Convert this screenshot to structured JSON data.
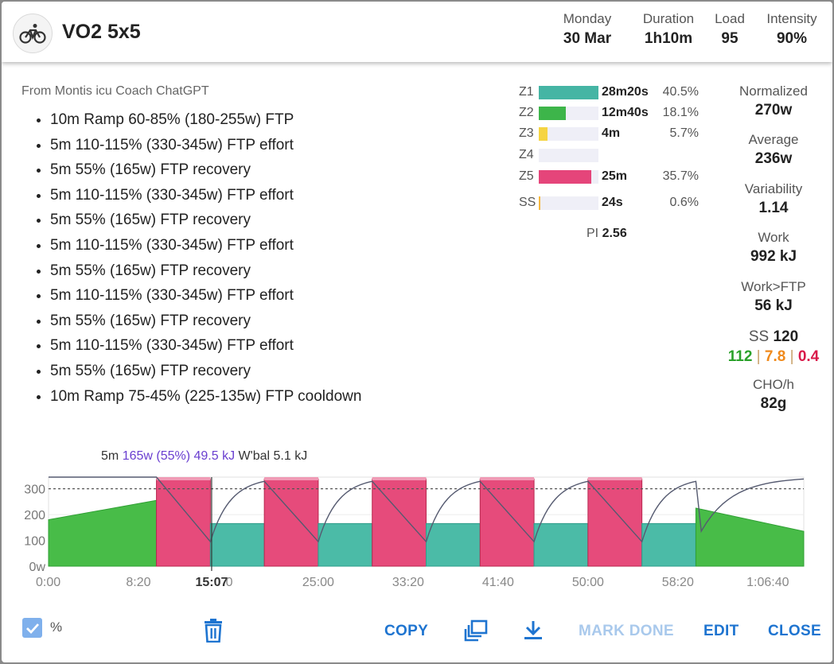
{
  "workout": {
    "title": "VO2 5x5",
    "icon": "bicycle-icon",
    "stats": [
      {
        "label": "Monday",
        "value": "30 Mar"
      },
      {
        "label": "Duration",
        "value": "1h10m"
      },
      {
        "label": "Load",
        "value": "95"
      },
      {
        "label": "Intensity",
        "value": "90%"
      }
    ]
  },
  "description": {
    "source": "From Montis icu Coach ChatGPT",
    "steps": [
      "10m Ramp 60-85% (180-255w) FTP",
      "5m 110-115% (330-345w) FTP effort",
      "5m 55% (165w) FTP recovery",
      "5m 110-115% (330-345w) FTP effort",
      "5m 55% (165w) FTP recovery",
      "5m 110-115% (330-345w) FTP effort",
      "5m 55% (165w) FTP recovery",
      "5m 110-115% (330-345w) FTP effort",
      "5m 55% (165w) FTP recovery",
      "5m 110-115% (330-345w) FTP effort",
      "5m 55% (165w) FTP recovery",
      "10m Ramp 75-45% (225-135w) FTP cooldown"
    ]
  },
  "zones": [
    {
      "name": "Z1",
      "time": "28m20s",
      "pct": "40.5%",
      "fraction": 0.405,
      "color": "#45b5a4"
    },
    {
      "name": "Z2",
      "time": "12m40s",
      "pct": "18.1%",
      "fraction": 0.181,
      "color": "#3db54a"
    },
    {
      "name": "Z3",
      "time": "4m",
      "pct": "5.7%",
      "fraction": 0.057,
      "color": "#f5d442"
    },
    {
      "name": "Z4",
      "time": "",
      "pct": "",
      "fraction": 0,
      "color": "#f29a38"
    },
    {
      "name": "Z5",
      "time": "25m",
      "pct": "35.7%",
      "fraction": 0.357,
      "color": "#e5457a"
    },
    {
      "name": "SS",
      "time": "24s",
      "pct": "0.6%",
      "fraction": 0.006,
      "color": "#f5b942"
    }
  ],
  "pi": {
    "label": "PI",
    "value": "2.56"
  },
  "summary": [
    {
      "label": "Normalized",
      "value": "270w"
    },
    {
      "label": "Average",
      "value": "236w"
    },
    {
      "label": "Variability",
      "value": "1.14"
    },
    {
      "label": "Work",
      "value": "992 kJ"
    },
    {
      "label": "Work>FTP",
      "value": "56 kJ"
    }
  ],
  "ss": {
    "label": "SS",
    "value": "120",
    "a": "112",
    "b": "7.8",
    "c": "0.4",
    "colors": [
      "#2aa12a",
      "#f08a1c",
      "#d91a4a"
    ]
  },
  "cho": {
    "label": "CHO/h",
    "value": "82g"
  },
  "chart_info": {
    "duration": "5m",
    "power": "165w (55%) 49.5 kJ",
    "wbal": "W'bal 5.1 kJ"
  },
  "chart_data": {
    "type": "area",
    "x_unit": "seconds",
    "xlim": [
      0,
      4200
    ],
    "ylim": [
      0,
      345
    ],
    "ftp_line": 300,
    "y_ticks": [
      "0w",
      "100",
      "200",
      "300"
    ],
    "x_ticks": [
      "0:00",
      "8:20",
      "15:07",
      "0",
      "25:00",
      "33:20",
      "41:40",
      "50:00",
      "58:20",
      "1:06:40"
    ],
    "segments": [
      {
        "start": 0,
        "end": 600,
        "from": 180,
        "to": 255,
        "zone": "Z2"
      },
      {
        "start": 600,
        "end": 900,
        "from": 338,
        "to": 338,
        "zone": "Z5"
      },
      {
        "start": 900,
        "end": 1200,
        "from": 165,
        "to": 165,
        "zone": "Z1"
      },
      {
        "start": 1200,
        "end": 1500,
        "from": 338,
        "to": 338,
        "zone": "Z5"
      },
      {
        "start": 1500,
        "end": 1800,
        "from": 165,
        "to": 165,
        "zone": "Z1"
      },
      {
        "start": 1800,
        "end": 2100,
        "from": 338,
        "to": 338,
        "zone": "Z5"
      },
      {
        "start": 2100,
        "end": 2400,
        "from": 165,
        "to": 165,
        "zone": "Z1"
      },
      {
        "start": 2400,
        "end": 2700,
        "from": 338,
        "to": 338,
        "zone": "Z5"
      },
      {
        "start": 2700,
        "end": 3000,
        "from": 165,
        "to": 165,
        "zone": "Z1"
      },
      {
        "start": 3000,
        "end": 3300,
        "from": 338,
        "to": 338,
        "zone": "Z5"
      },
      {
        "start": 3300,
        "end": 3600,
        "from": 165,
        "to": 165,
        "zone": "Z1"
      },
      {
        "start": 3600,
        "end": 4200,
        "from": 225,
        "to": 135,
        "zone": "Z2"
      }
    ],
    "cursor": 907,
    "wbal_min": 95
  },
  "footer": {
    "percent_label": "%",
    "percent_checked": true,
    "copy": "COPY",
    "mark_done": "MARK DONE",
    "edit": "EDIT",
    "close": "CLOSE"
  }
}
